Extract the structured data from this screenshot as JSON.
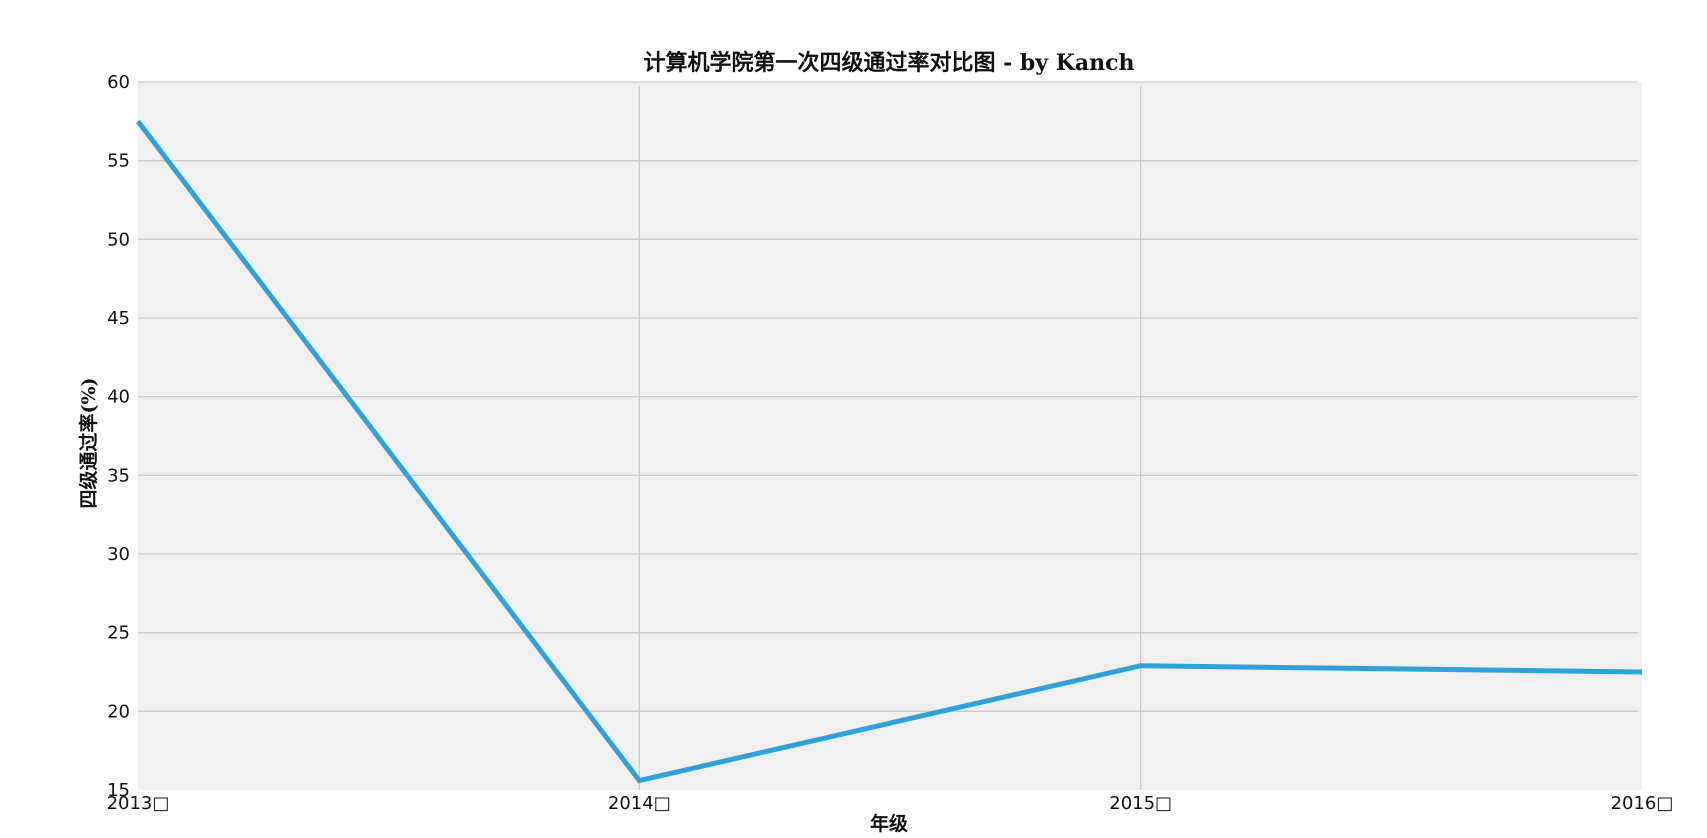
{
  "chart_data": {
    "type": "line",
    "title": "计算机学院第一次四级通过率对比图 - by Kanch",
    "xlabel": "年级",
    "ylabel": "四级通过率(%)",
    "categories": [
      "2013级",
      "2014级",
      "2015级",
      "2016级"
    ],
    "x_tick_labels": [
      "2013□",
      "2014□",
      "2015□",
      "2016□"
    ],
    "series": [
      {
        "values": [
          57.5,
          15.6,
          22.9,
          22.5
        ]
      }
    ],
    "ylim": [
      15,
      60
    ],
    "yticks": [
      15,
      20,
      25,
      30,
      35,
      40,
      45,
      50,
      55,
      60
    ],
    "grid": true,
    "legend": "none",
    "colors": {
      "line": "#30a2da",
      "plot_background": "#f0f0f0",
      "grid": "#cbcbcb",
      "figure_background": "#ffffff"
    }
  }
}
